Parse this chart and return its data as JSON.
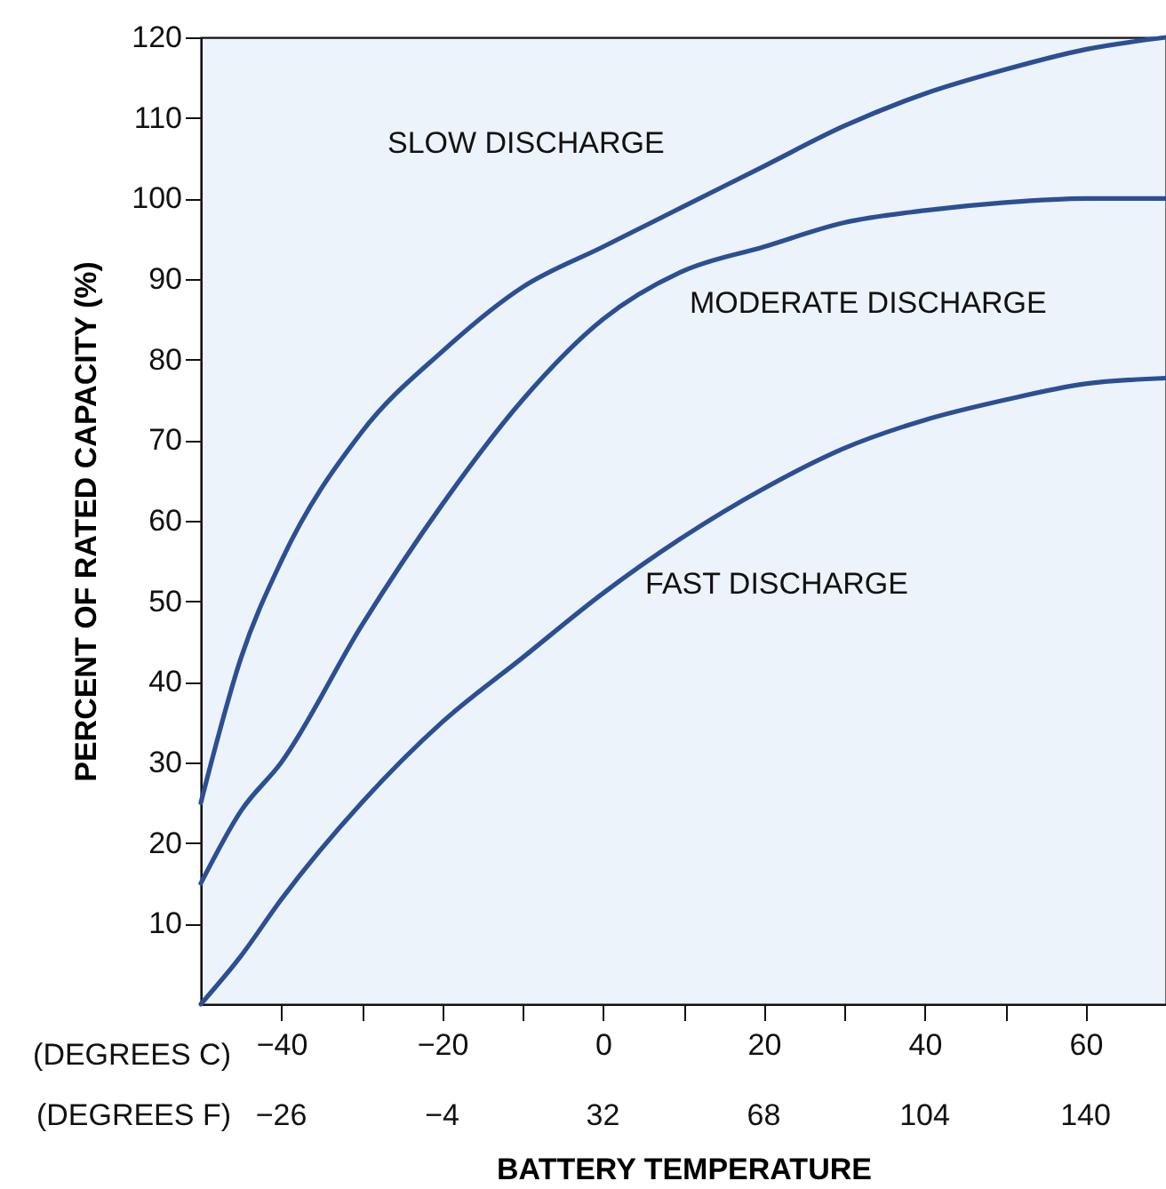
{
  "chart_data": {
    "type": "line",
    "xlabel": "BATTERY TEMPERATURE",
    "ylabel": "PERCENT OF RATED CAPACITY (%)",
    "annotations": [
      "(DEGREES C)",
      "(DEGREES F)",
      "−26",
      "−4",
      "32",
      "68",
      "104",
      "140"
    ],
    "x": [
      -50,
      -45,
      -40,
      -30,
      -20,
      -10,
      0,
      10,
      20,
      30,
      40,
      50,
      60,
      70
    ],
    "series": [
      {
        "name": "SLOW DISCHARGE",
        "color": "#2c4f94",
        "values": [
          25,
          43,
          55,
          71,
          81,
          89,
          94,
          99,
          104,
          109,
          113,
          116,
          118.5,
          120
        ]
      },
      {
        "name": "MODERATE DISCHARGE",
        "color": "#2c4f94",
        "values": [
          15,
          24,
          30,
          47,
          62,
          75,
          85,
          91,
          94,
          97,
          98.5,
          99.5,
          100,
          100
        ]
      },
      {
        "name": "FAST DISCHARGE",
        "color": "#2c4f94",
        "values": [
          0,
          6,
          13,
          25,
          35,
          43,
          51,
          58,
          64,
          69,
          72.5,
          75,
          77,
          77.7
        ]
      }
    ],
    "xlim": [
      -50,
      70
    ],
    "xticks": [
      {
        "value": -40,
        "label": "−40"
      },
      {
        "value": -30,
        "label": null
      },
      {
        "value": -20,
        "label": "−20"
      },
      {
        "value": -10,
        "label": null
      },
      {
        "value": 0,
        "label": "0"
      },
      {
        "value": 10,
        "label": null
      },
      {
        "value": 20,
        "label": "20"
      },
      {
        "value": 30,
        "label": null
      },
      {
        "value": 40,
        "label": "40"
      },
      {
        "value": 50,
        "label": null
      },
      {
        "value": 60,
        "label": "60"
      }
    ],
    "ylim": [
      0,
      120
    ],
    "yticks": [
      10,
      20,
      30,
      40,
      50,
      60,
      70,
      80,
      90,
      100,
      110,
      120
    ],
    "grid": false,
    "marker": "none",
    "line_style": "solid"
  }
}
